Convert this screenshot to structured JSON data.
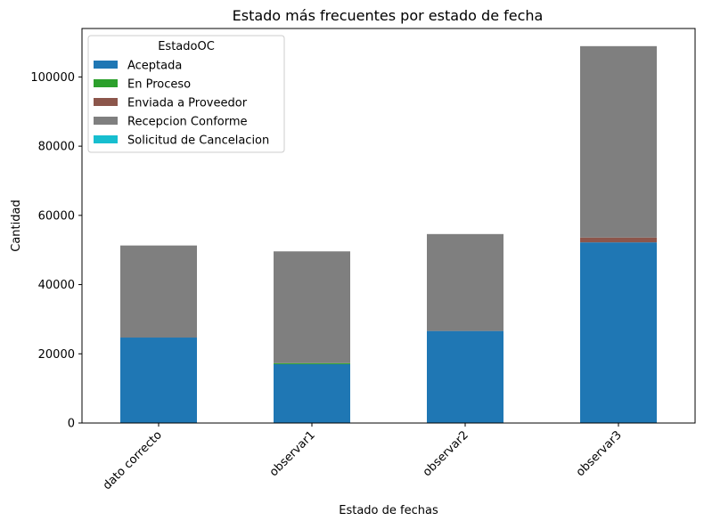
{
  "chart_data": {
    "type": "bar",
    "stacked": true,
    "title": "Estado más frecuentes por estado de fecha",
    "xlabel": "Estado de fechas",
    "ylabel": "Cantidad",
    "categories": [
      "dato correcto",
      "observar1",
      "observar2",
      "observar3"
    ],
    "ylim": [
      0,
      114000
    ],
    "yticks": [
      0,
      20000,
      40000,
      60000,
      80000,
      100000
    ],
    "ytick_labels": [
      "0",
      "20000",
      "40000",
      "60000",
      "80000",
      "100000"
    ],
    "legend_title": "EstadoOC",
    "legend_position": "top-left",
    "grid": false,
    "series": [
      {
        "name": "Aceptada",
        "color": "#1f77b4",
        "values": [
          24700,
          17000,
          26600,
          52200
        ]
      },
      {
        "name": "En Proceso",
        "color": "#2ca02c",
        "values": [
          0,
          300,
          0,
          0
        ]
      },
      {
        "name": "Enviada a Proveedor",
        "color": "#8c564b",
        "values": [
          0,
          0,
          0,
          1400
        ]
      },
      {
        "name": "Recepcion Conforme",
        "color": "#7f7f7f",
        "values": [
          26600,
          32300,
          28000,
          55300
        ]
      },
      {
        "name": "Solicitud de Cancelacion",
        "color": "#17becf",
        "values": [
          0,
          0,
          0,
          0
        ]
      }
    ]
  }
}
